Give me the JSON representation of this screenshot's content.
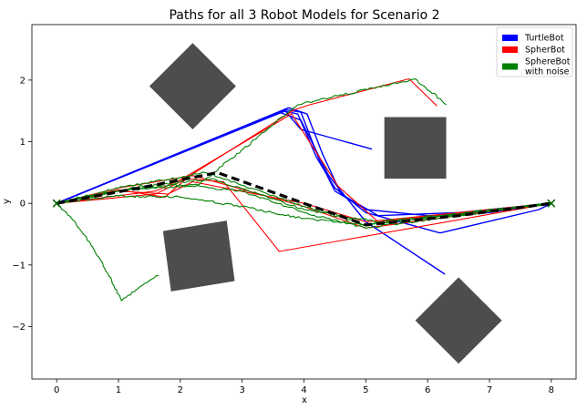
{
  "chart_data": {
    "type": "line",
    "title": "Paths for all 3 Robot Models for Scenario 2",
    "xlabel": "x",
    "ylabel": "y",
    "xlim": [
      -0.4,
      8.4
    ],
    "ylim": [
      -2.85,
      2.9
    ],
    "xticks": [
      0,
      1,
      2,
      3,
      4,
      5,
      6,
      7,
      8
    ],
    "yticks": [
      -2,
      -1,
      0,
      1,
      2
    ],
    "grid": false,
    "legend_position": "top-right",
    "legend": [
      {
        "label_lines": [
          "TurtleBot"
        ],
        "color": "#0000ff"
      },
      {
        "label_lines": [
          "SpherBot"
        ],
        "color": "#ff0000"
      },
      {
        "label_lines": [
          "SphereBot",
          "with noise"
        ],
        "color": "#008000"
      }
    ],
    "obstacles": [
      {
        "name": "obstacle-diamond-top",
        "points": [
          [
            2.2,
            2.6
          ],
          [
            2.9,
            1.9
          ],
          [
            2.2,
            1.2
          ],
          [
            1.5,
            1.9
          ]
        ]
      },
      {
        "name": "obstacle-square-right",
        "points": [
          [
            5.3,
            1.4
          ],
          [
            6.3,
            1.4
          ],
          [
            6.3,
            0.4
          ],
          [
            5.3,
            0.4
          ]
        ]
      },
      {
        "name": "obstacle-tilted-square",
        "points": [
          [
            1.72,
            -0.45
          ],
          [
            2.75,
            -0.28
          ],
          [
            2.88,
            -1.26
          ],
          [
            1.85,
            -1.43
          ]
        ]
      },
      {
        "name": "obstacle-diamond-bottom",
        "points": [
          [
            6.5,
            -1.2
          ],
          [
            7.2,
            -1.9
          ],
          [
            6.5,
            -2.6
          ],
          [
            5.8,
            -1.9
          ]
        ]
      }
    ],
    "obstacle_color": "#4d4d4d",
    "reference_path": {
      "color": "#000000",
      "points": [
        [
          0,
          0
        ],
        [
          1.5,
          0.28
        ],
        [
          2.6,
          0.5
        ],
        [
          4,
          0
        ],
        [
          5,
          -0.35
        ],
        [
          6.5,
          -0.2
        ],
        [
          8,
          0
        ]
      ]
    },
    "start_marker": {
      "x": 0,
      "y": 0,
      "symbol": "x"
    },
    "goal_marker": {
      "x": 8,
      "y": 0,
      "symbol": "x"
    },
    "series": [
      {
        "group": "TurtleBot",
        "color": "#0000ff",
        "points": [
          [
            0,
            0
          ],
          [
            3.7,
            1.52
          ],
          [
            3.95,
            1.48
          ],
          [
            4.25,
            0.7
          ],
          [
            4.5,
            0.2
          ],
          [
            5,
            -0.1
          ],
          [
            6,
            -0.2
          ],
          [
            7,
            -0.15
          ],
          [
            8,
            0
          ]
        ]
      },
      {
        "group": "TurtleBot",
        "color": "#0000ff",
        "points": [
          [
            0,
            0
          ],
          [
            3.65,
            1.5
          ],
          [
            3.9,
            1.45
          ],
          [
            4.2,
            0.75
          ],
          [
            4.5,
            0.25
          ],
          [
            5,
            -0.15
          ],
          [
            6.2,
            -0.48
          ],
          [
            7.8,
            -0.1
          ],
          [
            8,
            0
          ]
        ]
      },
      {
        "group": "TurtleBot",
        "color": "#0000ff",
        "points": [
          [
            0,
            0
          ],
          [
            3.75,
            1.55
          ],
          [
            4.05,
            1.45
          ],
          [
            4.3,
            0.8
          ],
          [
            4.6,
            0.15
          ],
          [
            5.2,
            -0.2
          ],
          [
            6.5,
            -0.15
          ],
          [
            8,
            0
          ]
        ]
      },
      {
        "group": "TurtleBot",
        "color": "#0000ff",
        "points": [
          [
            0,
            0
          ],
          [
            3.7,
            1.5
          ],
          [
            3.95,
            1.2
          ],
          [
            5.1,
            0.88
          ]
        ]
      },
      {
        "group": "TurtleBot",
        "color": "#0000ff",
        "points": [
          [
            0,
            0
          ],
          [
            3.6,
            1.48
          ],
          [
            3.95,
            1.35
          ],
          [
            4.4,
            0.45
          ],
          [
            5,
            -0.3
          ],
          [
            6.28,
            -1.15
          ]
        ]
      },
      {
        "group": "SpherBot",
        "color": "#ff0000",
        "points": [
          [
            0,
            0
          ],
          [
            1,
            0.22
          ],
          [
            1.75,
            0.1
          ],
          [
            2.1,
            0.4
          ],
          [
            2.7,
            0.35
          ],
          [
            3.6,
            -0.78
          ],
          [
            8,
            0
          ]
        ]
      },
      {
        "group": "SpherBot",
        "color": "#ff0000",
        "points": [
          [
            0,
            0
          ],
          [
            1,
            0.2
          ],
          [
            1.8,
            0.15
          ],
          [
            2.2,
            0.35
          ],
          [
            4,
            0
          ],
          [
            5,
            -0.3
          ],
          [
            8,
            0
          ]
        ]
      },
      {
        "group": "SpherBot",
        "color": "#ff0000",
        "points": [
          [
            0,
            0
          ],
          [
            1,
            0.25
          ],
          [
            2.2,
            0.45
          ],
          [
            4,
            -0.05
          ],
          [
            5,
            -0.4
          ],
          [
            8,
            0
          ]
        ]
      },
      {
        "group": "SpherBot",
        "color": "#ff0000",
        "points": [
          [
            0,
            0
          ],
          [
            1.6,
            0.2
          ],
          [
            2,
            0.38
          ],
          [
            3.8,
            1.45
          ],
          [
            4.55,
            0.28
          ],
          [
            5.2,
            -0.3
          ],
          [
            8,
            0
          ]
        ]
      },
      {
        "group": "SpherBot",
        "color": "#ff0000",
        "points": [
          [
            0,
            0
          ],
          [
            1.6,
            0.15
          ],
          [
            2,
            0.35
          ],
          [
            3.85,
            1.52
          ],
          [
            4.1,
            1.6
          ],
          [
            5.7,
            2.02
          ],
          [
            6.15,
            1.58
          ]
        ]
      },
      {
        "group": "SphereBot with noise",
        "color": "#008000",
        "points": [
          [
            0,
            0
          ],
          [
            0.3,
            -0.3
          ],
          [
            0.7,
            -0.9
          ],
          [
            1.05,
            -1.58
          ],
          [
            1.35,
            -1.35
          ],
          [
            1.65,
            -1.17
          ]
        ]
      },
      {
        "group": "SphereBot with noise",
        "color": "#008000",
        "points": [
          [
            0,
            0
          ],
          [
            1,
            0.2
          ],
          [
            2.3,
            0.3
          ],
          [
            3.9,
            1.6
          ],
          [
            5.8,
            2.02
          ],
          [
            6.3,
            1.6
          ]
        ]
      },
      {
        "group": "SphereBot with noise",
        "color": "#008000",
        "points": [
          [
            0,
            0
          ],
          [
            1,
            0.25
          ],
          [
            2.4,
            0.5
          ],
          [
            4,
            -0.05
          ],
          [
            5,
            -0.35
          ],
          [
            8,
            0
          ]
        ]
      },
      {
        "group": "SphereBot with noise",
        "color": "#008000",
        "points": [
          [
            0,
            0
          ],
          [
            1,
            0.12
          ],
          [
            2,
            0.1
          ],
          [
            3,
            -0.05
          ],
          [
            4,
            -0.25
          ],
          [
            5,
            -0.35
          ],
          [
            8,
            0
          ]
        ]
      },
      {
        "group": "SphereBot with noise",
        "color": "#008000",
        "points": [
          [
            0,
            0
          ],
          [
            1.2,
            0.25
          ],
          [
            2.5,
            0.4
          ],
          [
            4,
            -0.1
          ],
          [
            5.2,
            -0.3
          ],
          [
            8,
            0
          ]
        ]
      },
      {
        "group": "SphereBot with noise",
        "color": "#008000",
        "points": [
          [
            0,
            0
          ],
          [
            1,
            0.2
          ],
          [
            2,
            0.3
          ],
          [
            3,
            0.2
          ],
          [
            4,
            -0.15
          ],
          [
            5,
            -0.4
          ],
          [
            8,
            0
          ]
        ]
      }
    ]
  }
}
